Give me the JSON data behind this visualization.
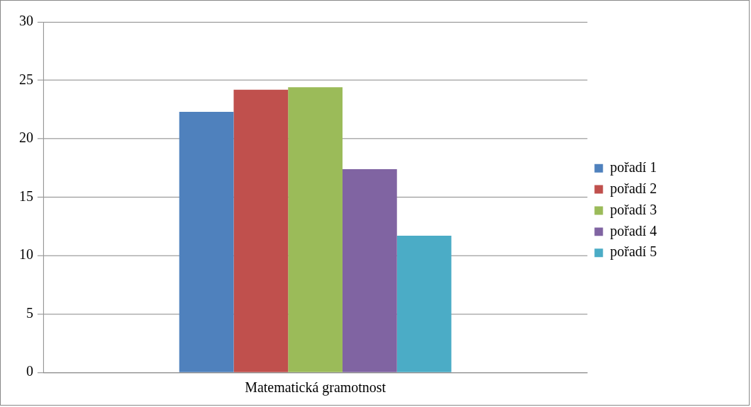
{
  "chart_data": {
    "type": "bar",
    "categories": [
      "Matematická gramotnost"
    ],
    "series": [
      {
        "name": "pořadí 1",
        "color": "#4f81bd",
        "values": [
          22.3
        ]
      },
      {
        "name": "pořadí 2",
        "color": "#c0504d",
        "values": [
          24.2
        ]
      },
      {
        "name": "pořadí 3",
        "color": "#9bbb59",
        "values": [
          24.4
        ]
      },
      {
        "name": "pořadí 4",
        "color": "#8064a2",
        "values": [
          17.4
        ]
      },
      {
        "name": "pořadí 5",
        "color": "#4bacc6",
        "values": [
          11.7
        ]
      }
    ],
    "ylim": [
      0,
      30
    ],
    "yticks": [
      0,
      5,
      10,
      15,
      20,
      25,
      30
    ],
    "grid": "y",
    "legend": "right"
  }
}
